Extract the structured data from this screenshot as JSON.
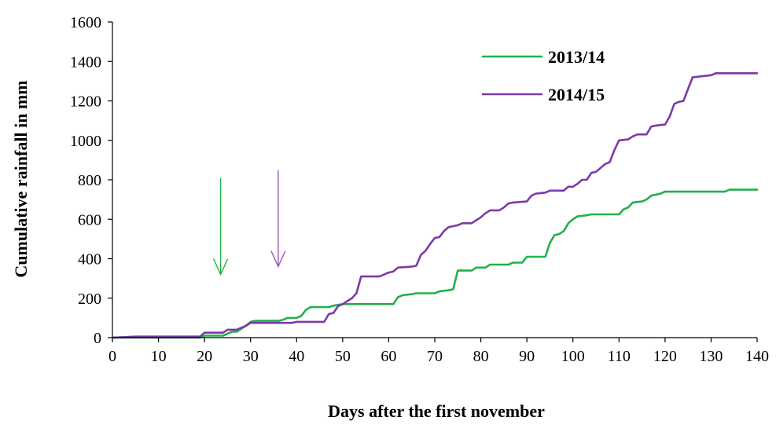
{
  "chart_data": {
    "type": "line",
    "xlabel": "Days after the first november",
    "ylabel": "Cumulative rainfall in mm",
    "xlim": [
      0,
      140
    ],
    "ylim": [
      0,
      1600
    ],
    "xticks": [
      "0",
      "10",
      "20",
      "30",
      "40",
      "50",
      "60",
      "70",
      "80",
      "90",
      "100",
      "110",
      "120",
      "130",
      "140"
    ],
    "yticks": [
      "0",
      "200",
      "400",
      "600",
      "800",
      "1000",
      "1200",
      "1400",
      "1600"
    ],
    "grid": false,
    "legend_position": "top-right",
    "series": [
      {
        "name": "2013/14",
        "color": "#22b04b",
        "points": [
          [
            0,
            0
          ],
          [
            19,
            0
          ],
          [
            20,
            10
          ],
          [
            24,
            10
          ],
          [
            26,
            30
          ],
          [
            27,
            30
          ],
          [
            28,
            45
          ],
          [
            29,
            60
          ],
          [
            30,
            80
          ],
          [
            31,
            85
          ],
          [
            36,
            85
          ],
          [
            37,
            90
          ],
          [
            38,
            100
          ],
          [
            40,
            100
          ],
          [
            41,
            110
          ],
          [
            42,
            140
          ],
          [
            43,
            155
          ],
          [
            47,
            155
          ],
          [
            48,
            162
          ],
          [
            50,
            170
          ],
          [
            61,
            170
          ],
          [
            62,
            205
          ],
          [
            63,
            215
          ],
          [
            65,
            220
          ],
          [
            66,
            225
          ],
          [
            70,
            225
          ],
          [
            71,
            235
          ],
          [
            73,
            240
          ],
          [
            74,
            245
          ],
          [
            75,
            340
          ],
          [
            78,
            340
          ],
          [
            79,
            355
          ],
          [
            81,
            355
          ],
          [
            82,
            370
          ],
          [
            86,
            370
          ],
          [
            87,
            380
          ],
          [
            89,
            380
          ],
          [
            90,
            410
          ],
          [
            94,
            410
          ],
          [
            95,
            480
          ],
          [
            96,
            520
          ],
          [
            97,
            525
          ],
          [
            98,
            540
          ],
          [
            99,
            580
          ],
          [
            100,
            600
          ],
          [
            101,
            615
          ],
          [
            103,
            620
          ],
          [
            104,
            625
          ],
          [
            110,
            625
          ],
          [
            111,
            650
          ],
          [
            112,
            660
          ],
          [
            113,
            685
          ],
          [
            115,
            690
          ],
          [
            116,
            700
          ],
          [
            117,
            720
          ],
          [
            119,
            730
          ],
          [
            120,
            740
          ],
          [
            133,
            740
          ],
          [
            134,
            750
          ],
          [
            140,
            750
          ]
        ]
      },
      {
        "name": "2014/15",
        "color": "#7b3aa8",
        "points": [
          [
            0,
            0
          ],
          [
            5,
            5
          ],
          [
            19,
            5
          ],
          [
            20,
            25
          ],
          [
            24,
            25
          ],
          [
            25,
            40
          ],
          [
            27,
            40
          ],
          [
            28,
            50
          ],
          [
            29,
            60
          ],
          [
            30,
            75
          ],
          [
            39,
            75
          ],
          [
            40,
            80
          ],
          [
            46,
            80
          ],
          [
            47,
            120
          ],
          [
            48,
            125
          ],
          [
            49,
            160
          ],
          [
            50,
            170
          ],
          [
            51,
            185
          ],
          [
            52,
            200
          ],
          [
            53,
            225
          ],
          [
            54,
            310
          ],
          [
            58,
            310
          ],
          [
            59,
            320
          ],
          [
            60,
            330
          ],
          [
            61,
            335
          ],
          [
            62,
            355
          ],
          [
            65,
            360
          ],
          [
            66,
            365
          ],
          [
            67,
            420
          ],
          [
            68,
            440
          ],
          [
            69,
            475
          ],
          [
            70,
            505
          ],
          [
            71,
            510
          ],
          [
            72,
            540
          ],
          [
            73,
            560
          ],
          [
            74,
            565
          ],
          [
            75,
            570
          ],
          [
            76,
            580
          ],
          [
            78,
            580
          ],
          [
            79,
            595
          ],
          [
            80,
            610
          ],
          [
            81,
            630
          ],
          [
            82,
            645
          ],
          [
            84,
            645
          ],
          [
            85,
            660
          ],
          [
            86,
            680
          ],
          [
            87,
            685
          ],
          [
            90,
            690
          ],
          [
            91,
            720
          ],
          [
            92,
            730
          ],
          [
            94,
            735
          ],
          [
            95,
            745
          ],
          [
            98,
            745
          ],
          [
            99,
            765
          ],
          [
            100,
            765
          ],
          [
            101,
            780
          ],
          [
            102,
            800
          ],
          [
            103,
            800
          ],
          [
            104,
            835
          ],
          [
            105,
            840
          ],
          [
            106,
            860
          ],
          [
            107,
            880
          ],
          [
            108,
            890
          ],
          [
            109,
            950
          ],
          [
            110,
            1000
          ],
          [
            112,
            1005
          ],
          [
            113,
            1020
          ],
          [
            114,
            1030
          ],
          [
            116,
            1030
          ],
          [
            117,
            1070
          ],
          [
            118,
            1075
          ],
          [
            120,
            1080
          ],
          [
            121,
            1120
          ],
          [
            122,
            1185
          ],
          [
            123,
            1195
          ],
          [
            124,
            1200
          ],
          [
            125,
            1260
          ],
          [
            126,
            1320
          ],
          [
            128,
            1325
          ],
          [
            130,
            1330
          ],
          [
            131,
            1340
          ],
          [
            140,
            1340
          ]
        ]
      }
    ],
    "annotations": [
      {
        "type": "arrow",
        "color": "#22b04b",
        "x": 23.5,
        "y_from": 810,
        "y_to": 320
      },
      {
        "type": "arrow",
        "color": "#9b59b6",
        "x": 36,
        "y_from": 850,
        "y_to": 360
      }
    ]
  }
}
